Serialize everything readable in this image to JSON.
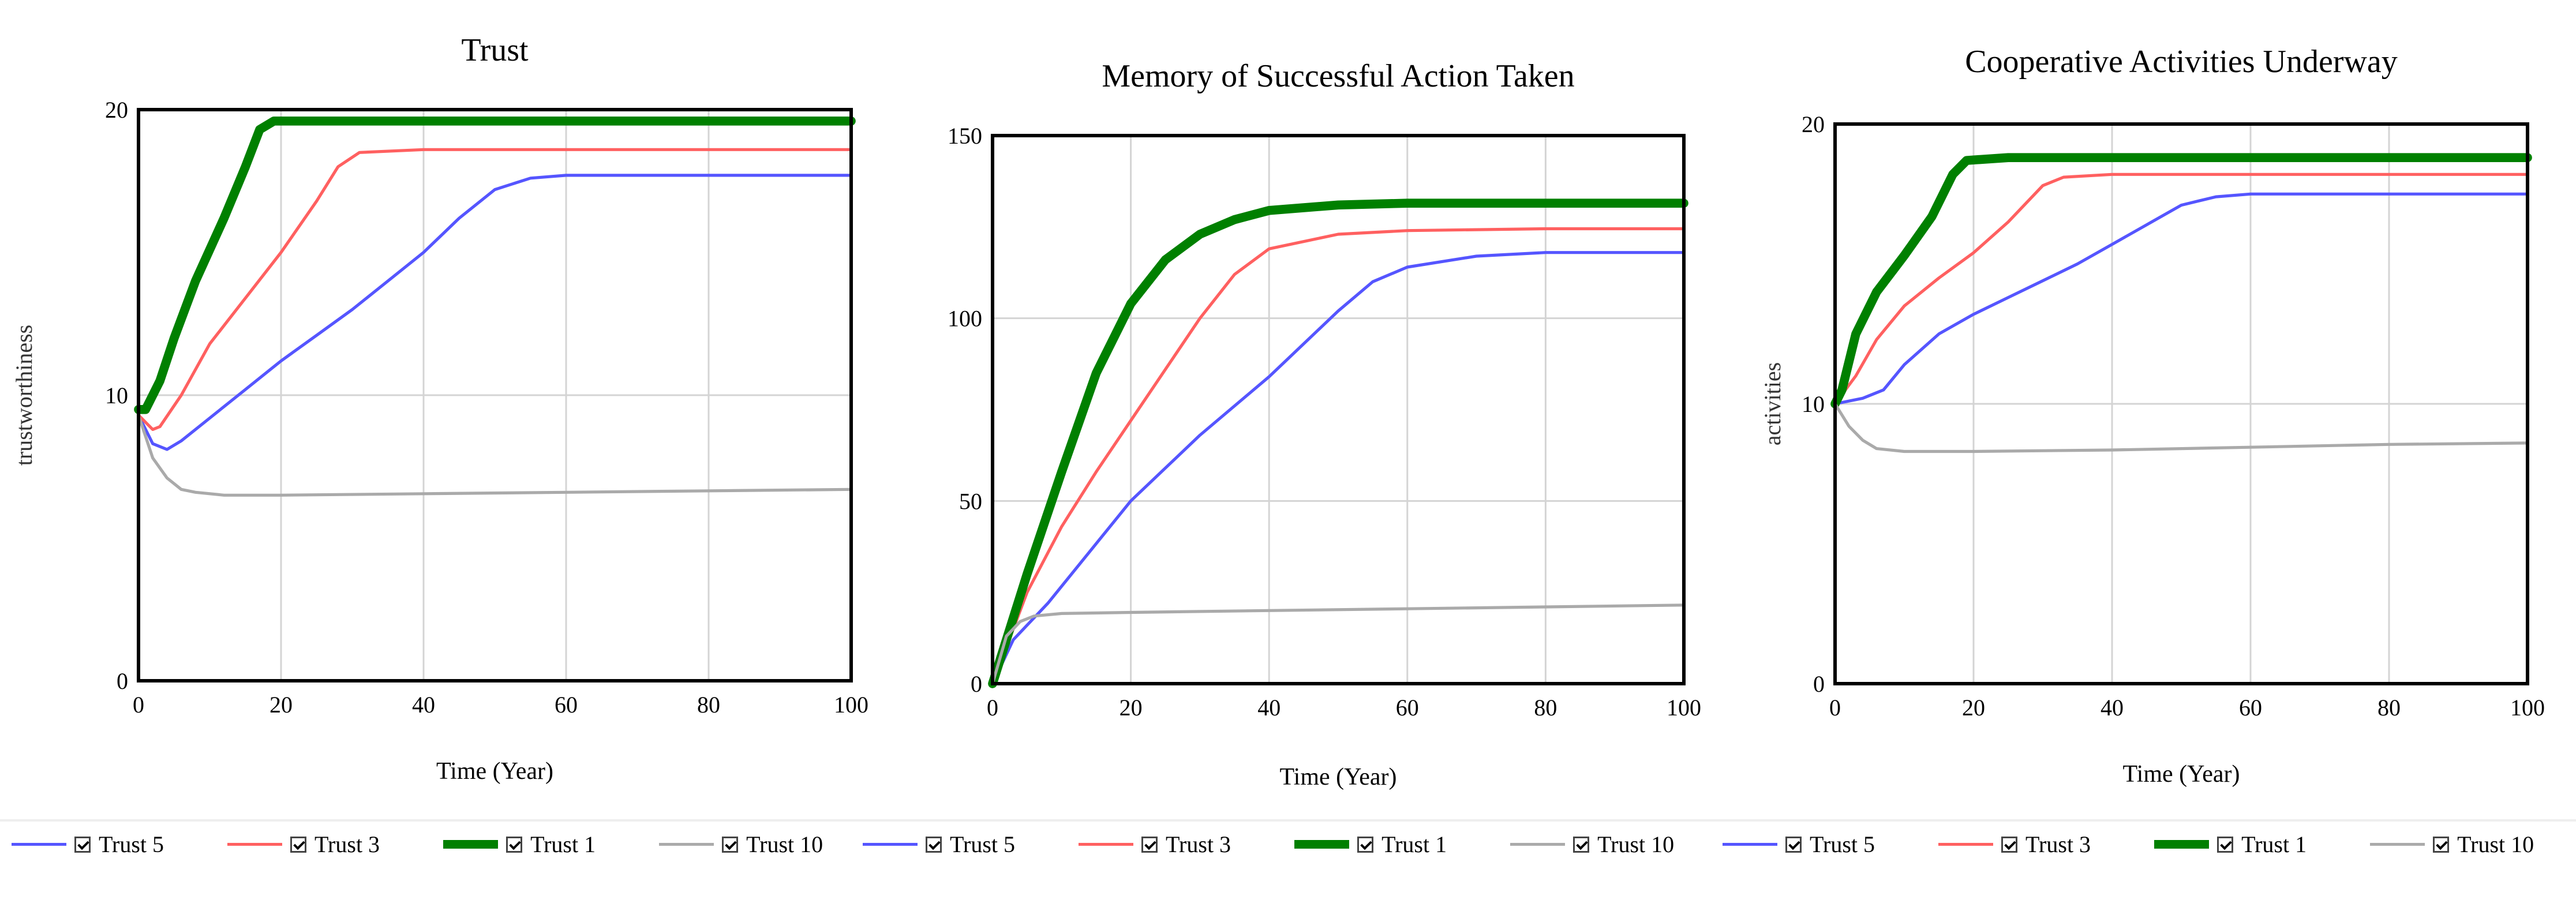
{
  "chart_data": [
    {
      "type": "line",
      "title": "Trust",
      "xlabel": "Time (Year)",
      "ylabel": "trustworthiness",
      "xlim": [
        0,
        100
      ],
      "ylim": [
        0,
        20
      ],
      "xticks": [
        0,
        20,
        40,
        60,
        80,
        100
      ],
      "yticks": [
        0,
        10,
        20
      ],
      "grid": true,
      "legend": "bottom",
      "series": [
        {
          "name": "Trust 5",
          "color": "#5555ff",
          "width": 2,
          "points": [
            [
              0,
              9.3
            ],
            [
              2,
              8.3
            ],
            [
              4,
              8.1
            ],
            [
              6,
              8.4
            ],
            [
              10,
              9.2
            ],
            [
              15,
              10.2
            ],
            [
              20,
              11.2
            ],
            [
              25,
              12.1
            ],
            [
              30,
              13.0
            ],
            [
              35,
              14.0
            ],
            [
              40,
              15.0
            ],
            [
              45,
              16.2
            ],
            [
              50,
              17.2
            ],
            [
              55,
              17.6
            ],
            [
              60,
              17.7
            ],
            [
              70,
              17.7
            ],
            [
              80,
              17.7
            ],
            [
              100,
              17.7
            ]
          ]
        },
        {
          "name": "Trust 3",
          "color": "#ff6060",
          "width": 2,
          "points": [
            [
              0,
              9.3
            ],
            [
              2,
              8.8
            ],
            [
              3,
              8.9
            ],
            [
              6,
              10.0
            ],
            [
              10,
              11.8
            ],
            [
              15,
              13.4
            ],
            [
              20,
              15.0
            ],
            [
              25,
              16.8
            ],
            [
              28,
              18.0
            ],
            [
              31,
              18.5
            ],
            [
              40,
              18.6
            ],
            [
              60,
              18.6
            ],
            [
              100,
              18.6
            ]
          ]
        },
        {
          "name": "Trust 1",
          "color": "#008000",
          "width": 6,
          "points": [
            [
              0,
              9.5
            ],
            [
              1,
              9.5
            ],
            [
              3,
              10.5
            ],
            [
              5,
              12.0
            ],
            [
              8,
              14.0
            ],
            [
              12,
              16.2
            ],
            [
              15,
              18.0
            ],
            [
              17,
              19.3
            ],
            [
              19,
              19.6
            ],
            [
              25,
              19.6
            ],
            [
              50,
              19.6
            ],
            [
              100,
              19.6
            ]
          ]
        },
        {
          "name": "Trust 10",
          "color": "#aaaaaa",
          "width": 2,
          "points": [
            [
              0,
              9.3
            ],
            [
              2,
              7.8
            ],
            [
              4,
              7.1
            ],
            [
              6,
              6.7
            ],
            [
              8,
              6.6
            ],
            [
              12,
              6.5
            ],
            [
              20,
              6.5
            ],
            [
              40,
              6.55
            ],
            [
              60,
              6.6
            ],
            [
              80,
              6.65
            ],
            [
              100,
              6.7
            ]
          ]
        }
      ]
    },
    {
      "type": "line",
      "title": "Memory of Successful Action Taken",
      "xlabel": "Time (Year)",
      "ylabel": "",
      "xlim": [
        0,
        100
      ],
      "ylim": [
        0,
        150
      ],
      "xticks": [
        0,
        20,
        40,
        60,
        80,
        100
      ],
      "yticks": [
        0,
        50,
        100,
        150
      ],
      "grid": true,
      "legend": "bottom",
      "series": [
        {
          "name": "Trust 5",
          "color": "#5555ff",
          "width": 2,
          "points": [
            [
              0,
              0
            ],
            [
              3,
              12
            ],
            [
              8,
              22
            ],
            [
              14,
              36
            ],
            [
              20,
              50
            ],
            [
              30,
              68
            ],
            [
              40,
              84
            ],
            [
              50,
              102
            ],
            [
              55,
              110
            ],
            [
              60,
              114
            ],
            [
              70,
              117
            ],
            [
              80,
              118
            ],
            [
              100,
              118
            ]
          ]
        },
        {
          "name": "Trust 3",
          "color": "#ff6060",
          "width": 2,
          "points": [
            [
              0,
              0
            ],
            [
              5,
              25
            ],
            [
              10,
              43
            ],
            [
              15,
              58
            ],
            [
              20,
              72
            ],
            [
              25,
              86
            ],
            [
              30,
              100
            ],
            [
              35,
              112
            ],
            [
              40,
              119
            ],
            [
              50,
              123
            ],
            [
              60,
              124
            ],
            [
              80,
              124.5
            ],
            [
              100,
              124.5
            ]
          ]
        },
        {
          "name": "Trust 1",
          "color": "#008000",
          "width": 6,
          "points": [
            [
              0,
              0
            ],
            [
              5,
              30
            ],
            [
              10,
              58
            ],
            [
              15,
              85
            ],
            [
              20,
              104
            ],
            [
              25,
              116
            ],
            [
              30,
              123
            ],
            [
              35,
              127
            ],
            [
              40,
              129.5
            ],
            [
              50,
              131
            ],
            [
              60,
              131.5
            ],
            [
              80,
              131.5
            ],
            [
              100,
              131.5
            ]
          ]
        },
        {
          "name": "Trust 10",
          "color": "#aaaaaa",
          "width": 2,
          "points": [
            [
              0,
              0
            ],
            [
              2,
              13
            ],
            [
              4,
              17
            ],
            [
              6,
              18.5
            ],
            [
              10,
              19.2
            ],
            [
              20,
              19.5
            ],
            [
              40,
              20
            ],
            [
              60,
              20.5
            ],
            [
              80,
              21
            ],
            [
              100,
              21.5
            ]
          ]
        }
      ]
    },
    {
      "type": "line",
      "title": "Cooperative Activities Underway",
      "xlabel": "Time (Year)",
      "ylabel": "activities",
      "xlim": [
        0,
        100
      ],
      "ylim": [
        0,
        20
      ],
      "xticks": [
        0,
        20,
        40,
        60,
        80,
        100
      ],
      "yticks": [
        0,
        10,
        20
      ],
      "grid": true,
      "legend": "bottom",
      "series": [
        {
          "name": "Trust 5",
          "color": "#5555ff",
          "width": 2,
          "points": [
            [
              0,
              10
            ],
            [
              4,
              10.2
            ],
            [
              7,
              10.5
            ],
            [
              10,
              11.4
            ],
            [
              15,
              12.5
            ],
            [
              20,
              13.2
            ],
            [
              25,
              13.8
            ],
            [
              30,
              14.4
            ],
            [
              35,
              15.0
            ],
            [
              40,
              15.7
            ],
            [
              45,
              16.4
            ],
            [
              50,
              17.1
            ],
            [
              55,
              17.4
            ],
            [
              60,
              17.5
            ],
            [
              80,
              17.5
            ],
            [
              100,
              17.5
            ]
          ]
        },
        {
          "name": "Trust 3",
          "color": "#ff6060",
          "width": 2,
          "points": [
            [
              0,
              10
            ],
            [
              3,
              11
            ],
            [
              6,
              12.3
            ],
            [
              10,
              13.5
            ],
            [
              15,
              14.5
            ],
            [
              20,
              15.4
            ],
            [
              25,
              16.5
            ],
            [
              30,
              17.8
            ],
            [
              33,
              18.1
            ],
            [
              40,
              18.2
            ],
            [
              60,
              18.2
            ],
            [
              100,
              18.2
            ]
          ]
        },
        {
          "name": "Trust 1",
          "color": "#008000",
          "width": 6,
          "points": [
            [
              0,
              10
            ],
            [
              1,
              10.5
            ],
            [
              3,
              12.5
            ],
            [
              6,
              14.0
            ],
            [
              10,
              15.3
            ],
            [
              14,
              16.7
            ],
            [
              17,
              18.2
            ],
            [
              19,
              18.7
            ],
            [
              25,
              18.8
            ],
            [
              50,
              18.8
            ],
            [
              100,
              18.8
            ]
          ]
        },
        {
          "name": "Trust 10",
          "color": "#aaaaaa",
          "width": 2,
          "points": [
            [
              0,
              10
            ],
            [
              2,
              9.2
            ],
            [
              4,
              8.7
            ],
            [
              6,
              8.4
            ],
            [
              10,
              8.3
            ],
            [
              20,
              8.3
            ],
            [
              40,
              8.35
            ],
            [
              60,
              8.45
            ],
            [
              80,
              8.55
            ],
            [
              100,
              8.6
            ]
          ]
        }
      ]
    }
  ]
}
